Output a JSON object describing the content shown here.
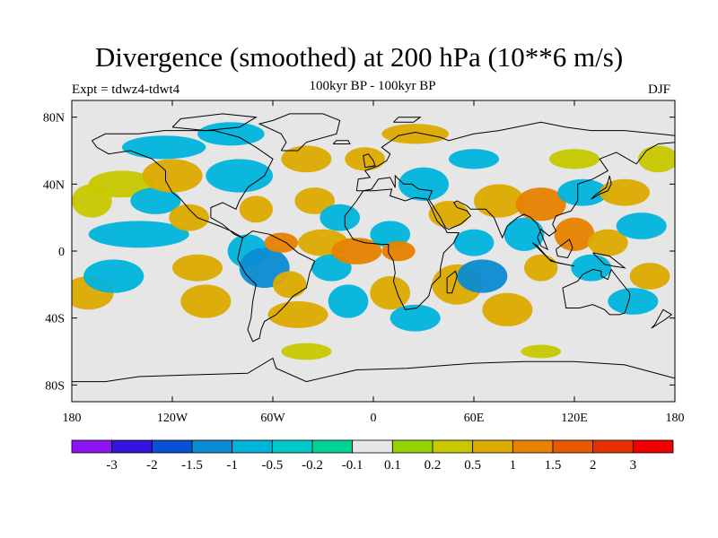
{
  "title": "Divergence (smoothed) at 200 hPa (10**6 m/s)",
  "expt_label": "Expt = tdwz4-tdwt4",
  "subtitle": "100kyr BP - 100kyr BP",
  "season": "DJF",
  "map": {
    "lon_ticks": [
      {
        "lon": -180,
        "label": "180"
      },
      {
        "lon": -120,
        "label": "120W"
      },
      {
        "lon": -60,
        "label": "60W"
      },
      {
        "lon": 0,
        "label": "0"
      },
      {
        "lon": 60,
        "label": "60E"
      },
      {
        "lon": 120,
        "label": "120E"
      },
      {
        "lon": 180,
        "label": "180"
      }
    ],
    "lat_ticks": [
      {
        "lat": 80,
        "label": "80N"
      },
      {
        "lat": 40,
        "label": "40N"
      },
      {
        "lat": 0,
        "label": "0"
      },
      {
        "lat": -40,
        "label": "40S"
      },
      {
        "lat": -80,
        "label": "80S"
      }
    ],
    "background_color": "#e6e6e6",
    "coastline_color": "#000000"
  },
  "colorbar": {
    "colors": [
      "#8c14f0",
      "#3214dc",
      "#0a50d2",
      "#0a8cd2",
      "#00b4dc",
      "#00c8c8",
      "#00d296",
      "#e6e6e6",
      "#96d200",
      "#c8c800",
      "#dcaa00",
      "#e68200",
      "#e65a00",
      "#e63200",
      "#f00000"
    ],
    "labels": [
      "-3",
      "-2",
      "-1.5",
      "-1",
      "-0.5",
      "-0.2",
      "-0.1",
      "0.1",
      "0.2",
      "0.5",
      "1",
      "1.5",
      "2",
      "3"
    ]
  },
  "field_blobs": [
    {
      "lon": -168,
      "lat": 30,
      "rlon": 12,
      "rlat": 10,
      "level": "0.2"
    },
    {
      "lon": -150,
      "lat": 40,
      "rlon": 20,
      "rlat": 8,
      "level": "0.2"
    },
    {
      "lon": -170,
      "lat": -25,
      "rlon": 15,
      "rlat": 10,
      "level": "0.5"
    },
    {
      "lon": -155,
      "lat": -15,
      "rlon": 18,
      "rlat": 10,
      "level": "-0.5"
    },
    {
      "lon": -140,
      "lat": 10,
      "rlon": 30,
      "rlat": 8,
      "level": "-0.5"
    },
    {
      "lon": -130,
      "lat": 30,
      "rlon": 15,
      "rlat": 8,
      "level": "-0.5"
    },
    {
      "lon": -120,
      "lat": 45,
      "rlon": 18,
      "rlat": 10,
      "level": "0.5"
    },
    {
      "lon": -125,
      "lat": 62,
      "rlon": 25,
      "rlat": 7,
      "level": "-0.5"
    },
    {
      "lon": -110,
      "lat": 20,
      "rlon": 12,
      "rlat": 8,
      "level": "0.5"
    },
    {
      "lon": -105,
      "lat": -10,
      "rlon": 15,
      "rlat": 8,
      "level": "0.5"
    },
    {
      "lon": -100,
      "lat": -30,
      "rlon": 15,
      "rlat": 10,
      "level": "0.5"
    },
    {
      "lon": -80,
      "lat": 45,
      "rlon": 20,
      "rlat": 10,
      "level": "-0.5"
    },
    {
      "lon": -85,
      "lat": 70,
      "rlon": 20,
      "rlat": 7,
      "level": "-0.5"
    },
    {
      "lon": -70,
      "lat": 25,
      "rlon": 10,
      "rlat": 8,
      "level": "0.5"
    },
    {
      "lon": -75,
      "lat": 0,
      "rlon": 12,
      "rlat": 10,
      "level": "-0.5"
    },
    {
      "lon": -65,
      "lat": -10,
      "rlon": 15,
      "rlat": 12,
      "level": "-1"
    },
    {
      "lon": -50,
      "lat": -20,
      "rlon": 10,
      "rlat": 8,
      "level": "0.5"
    },
    {
      "lon": -55,
      "lat": 5,
      "rlon": 10,
      "rlat": 6,
      "level": "1"
    },
    {
      "lon": -45,
      "lat": -38,
      "rlon": 18,
      "rlat": 8,
      "level": "0.5"
    },
    {
      "lon": -40,
      "lat": 55,
      "rlon": 15,
      "rlat": 8,
      "level": "0.5"
    },
    {
      "lon": -35,
      "lat": 30,
      "rlon": 12,
      "rlat": 8,
      "level": "0.5"
    },
    {
      "lon": -30,
      "lat": 5,
      "rlon": 15,
      "rlat": 8,
      "level": "0.5"
    },
    {
      "lon": -25,
      "lat": -10,
      "rlon": 12,
      "rlat": 8,
      "level": "-0.5"
    },
    {
      "lon": -20,
      "lat": 20,
      "rlon": 12,
      "rlat": 8,
      "level": "-0.5"
    },
    {
      "lon": -15,
      "lat": -30,
      "rlon": 12,
      "rlat": 10,
      "level": "-0.5"
    },
    {
      "lon": -10,
      "lat": 0,
      "rlon": 15,
      "rlat": 8,
      "level": "1"
    },
    {
      "lon": 10,
      "lat": 10,
      "rlon": 12,
      "rlat": 8,
      "level": "-0.5"
    },
    {
      "lon": 15,
      "lat": 0,
      "rlon": 10,
      "rlat": 6,
      "level": "1"
    },
    {
      "lon": 10,
      "lat": -25,
      "rlon": 12,
      "rlat": 10,
      "level": "0.5"
    },
    {
      "lon": 25,
      "lat": -40,
      "rlon": 15,
      "rlat": 8,
      "level": "-0.5"
    },
    {
      "lon": 30,
      "lat": 40,
      "rlon": 15,
      "rlat": 10,
      "level": "-0.5"
    },
    {
      "lon": 45,
      "lat": 22,
      "rlon": 12,
      "rlat": 8,
      "level": "0.5"
    },
    {
      "lon": 50,
      "lat": -20,
      "rlon": 15,
      "rlat": 12,
      "level": "0.5"
    },
    {
      "lon": 60,
      "lat": 5,
      "rlon": 12,
      "rlat": 8,
      "level": "-0.5"
    },
    {
      "lon": 65,
      "lat": -15,
      "rlon": 15,
      "rlat": 10,
      "level": "-1"
    },
    {
      "lon": 75,
      "lat": 30,
      "rlon": 15,
      "rlat": 10,
      "level": "0.5"
    },
    {
      "lon": 80,
      "lat": -35,
      "rlon": 15,
      "rlat": 10,
      "level": "0.5"
    },
    {
      "lon": 90,
      "lat": 10,
      "rlon": 12,
      "rlat": 10,
      "level": "-0.5"
    },
    {
      "lon": 100,
      "lat": 28,
      "rlon": 15,
      "rlat": 10,
      "level": "1"
    },
    {
      "lon": 100,
      "lat": -10,
      "rlon": 10,
      "rlat": 8,
      "level": "0.5"
    },
    {
      "lon": 120,
      "lat": 10,
      "rlon": 12,
      "rlat": 10,
      "level": "1"
    },
    {
      "lon": 125,
      "lat": 35,
      "rlon": 15,
      "rlat": 8,
      "level": "-0.5"
    },
    {
      "lon": 130,
      "lat": -10,
      "rlon": 12,
      "rlat": 8,
      "level": "-0.5"
    },
    {
      "lon": 140,
      "lat": 5,
      "rlon": 12,
      "rlat": 8,
      "level": "0.5"
    },
    {
      "lon": 150,
      "lat": 35,
      "rlon": 15,
      "rlat": 8,
      "level": "0.5"
    },
    {
      "lon": 160,
      "lat": 15,
      "rlon": 15,
      "rlat": 8,
      "level": "-0.5"
    },
    {
      "lon": 155,
      "lat": -30,
      "rlon": 15,
      "rlat": 8,
      "level": "-0.5"
    },
    {
      "lon": 165,
      "lat": -15,
      "rlon": 12,
      "rlat": 8,
      "level": "0.5"
    },
    {
      "lon": 170,
      "lat": 55,
      "rlon": 12,
      "rlat": 8,
      "level": "0.2"
    },
    {
      "lon": 25,
      "lat": 70,
      "rlon": 20,
      "rlat": 6,
      "level": "0.5"
    },
    {
      "lon": -5,
      "lat": 55,
      "rlon": 12,
      "rlat": 7,
      "level": "0.5"
    },
    {
      "lon": 60,
      "lat": 55,
      "rlon": 15,
      "rlat": 6,
      "level": "-0.5"
    },
    {
      "lon": 120,
      "lat": 55,
      "rlon": 15,
      "rlat": 6,
      "level": "0.2"
    },
    {
      "lon": -40,
      "lat": -60,
      "rlon": 15,
      "rlat": 5,
      "level": "0.2"
    },
    {
      "lon": 100,
      "lat": -60,
      "rlon": 12,
      "rlat": 4,
      "level": "0.2"
    }
  ]
}
